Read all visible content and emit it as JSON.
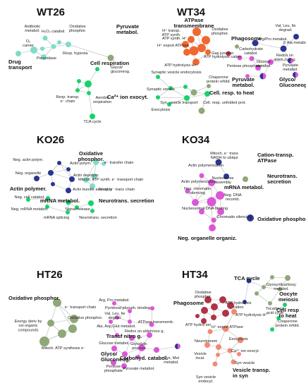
{
  "colors": {
    "cyan": "#7fdcc8",
    "cyan_dark": "#3ec0a8",
    "green": "#15d36a",
    "olive": "#8fa877",
    "navy": "#2b3590",
    "magenta": "#dd55d8",
    "orange": "#f0682f",
    "red_dark": "#c23a4e",
    "dark_red": "#b13248",
    "salmon": "#f08a72",
    "edge": "#b5b5b5"
  },
  "panels": [
    {
      "id": "WT26",
      "title": "WT26"
    },
    {
      "id": "WT34",
      "title": "WT34"
    },
    {
      "id": "KO26",
      "title": "KO26"
    },
    {
      "id": "KO34",
      "title": "KO34"
    },
    {
      "id": "HT26",
      "title": "HT26"
    },
    {
      "id": "HT34",
      "title": "HT34"
    }
  ],
  "labels": [
    {
      "id": "antibiotic",
      "text": "Antibiotic\nmetabol.",
      "bold": false
    },
    {
      "id": "h2o2",
      "text": "H₂O₂ catabol.",
      "bold": false
    },
    {
      "id": "oxphos_wt26",
      "text": "Oxidative\nphosphor.",
      "bold": false
    },
    {
      "id": "o2carrier",
      "text": "O₂\ncarrier",
      "bold": false
    },
    {
      "id": "peroxidase",
      "text": "Peroxidase",
      "bold": false
    },
    {
      "id": "resp_hypoxia",
      "text": "Resp. hypoxia",
      "bold": false
    },
    {
      "id": "drug_transport",
      "text": "Drug\ntransport",
      "bold": true
    },
    {
      "id": "pyruvate_wt26",
      "text": "Pyruvate\nmetabol.",
      "bold": true
    },
    {
      "id": "glycol_wt26",
      "text": "Glycol/\ngluconeog.",
      "bold": false
    },
    {
      "id": "cellresp_wt26",
      "text": "Cell respiration",
      "bold": true
    },
    {
      "id": "resptransp",
      "text": "Resp. transp.\ne⁻ chain",
      "bold": false
    },
    {
      "id": "aerobic",
      "text": "Aerobic\nrespiration",
      "bold": false
    },
    {
      "id": "tca_wt26",
      "text": "TCA cycle",
      "bold": false
    },
    {
      "id": "atpase_tm",
      "text": "ATPase\ntransmembrane",
      "bold": true
    },
    {
      "id": "htransp",
      "text": "H⁺ transp.\nATP synth.",
      "bold": false
    },
    {
      "id": "oxphos_wt34",
      "text": "Oxidative\nphosphor.",
      "bold": false
    },
    {
      "id": "atpsynthh",
      "text": "ATP synth. H⁺",
      "bold": false
    },
    {
      "id": "hexport",
      "text": "H⁺ export ATPase",
      "bold": false
    },
    {
      "id": "atphydro_cat",
      "text": "ATP hydrolysis cation",
      "bold": false
    },
    {
      "id": "atphydro_h",
      "text": "ATP hydrolysis H⁺",
      "bold": false
    },
    {
      "id": "phagosome_wt34",
      "text": "Phagosome",
      "bold": true
    },
    {
      "id": "gapjunction",
      "text": "Gap junction",
      "bold": false
    },
    {
      "id": "argpro_wt34",
      "text": "Arg/Pro metabol.",
      "bold": false
    },
    {
      "id": "valleu",
      "text": "Val, Leu, Ile\ndegrad.",
      "bold": false
    },
    {
      "id": "balametabol",
      "text": "β Ala metabol.",
      "bold": false
    },
    {
      "id": "carbometab",
      "text": "Carbohydrate\ncatabol.",
      "bold": false
    },
    {
      "id": "pentose_wt34",
      "text": "Pentose phosphate",
      "bold": false
    },
    {
      "id": "redox",
      "text": "Redox on\naldeh./oxo g.",
      "bold": false
    },
    {
      "id": "glucose_wt34",
      "text": "Glucose\nmetabol.",
      "bold": false
    },
    {
      "id": "pyruvate_wt34_small",
      "text": "Pyruvate\nmetabol.",
      "bold": false
    },
    {
      "id": "pyruvate_wt34",
      "text": "Pyruvate\nmetabol.",
      "bold": true
    },
    {
      "id": "glyco_wt34",
      "text": "Glyco/\nGluconeog.",
      "bold": true
    },
    {
      "id": "synvesexo",
      "text": "Synaptic vesicle endocytosis",
      "bold": false
    },
    {
      "id": "chaperone_wt34",
      "text": "Chaperone\nprotein refold.",
      "bold": false
    },
    {
      "id": "synvesicle",
      "text": "Synaptic vesicle",
      "bold": false
    },
    {
      "id": "ca2ion",
      "text": "Ca²⁺ ion exocyt.",
      "bold": true
    },
    {
      "id": "synvestrans",
      "text": "Syn. vesicle transport",
      "bold": false
    },
    {
      "id": "cellresp_heat",
      "text": "Cell. resp. to heat",
      "bold": true
    },
    {
      "id": "unfolded",
      "text": "Cell. resp. unfolded prot.",
      "bold": false
    },
    {
      "id": "exocytosis_wt34",
      "text": "Exocytosis",
      "bold": false
    },
    {
      "id": "negactin",
      "text": "Neg. actin polym.",
      "bold": false
    },
    {
      "id": "actinpolym",
      "text": "Actin polym.",
      "bold": false
    },
    {
      "id": "oxphos_ko26",
      "text": "Oxidative\nphosphor.",
      "bold": true
    },
    {
      "id": "etransfer",
      "text": "e⁻ transfer chain",
      "bold": false
    },
    {
      "id": "negorganelle_ko26",
      "text": "Neg. organelle",
      "bold": false
    },
    {
      "id": "actindepolym",
      "text": "Actin depolym.",
      "bold": false
    },
    {
      "id": "mitoch_ko26",
      "text": "Mitoch. ATP synth. e⁻ transport chain",
      "bold": false
    },
    {
      "id": "actinbundle",
      "text": "Actin bundle assembly",
      "bold": false
    },
    {
      "id": "resptrans_ko26",
      "text": "Resp. e⁻ trans chain",
      "bold": false
    },
    {
      "id": "actinpolymer_b",
      "text": "Actin polymer.",
      "bold": true
    },
    {
      "id": "negcellcatabol",
      "text": "Neg. cell catabol.",
      "bold": false
    },
    {
      "id": "mrna_ko26",
      "text": "mRNA metabol.",
      "bold": true
    },
    {
      "id": "neurotrans_ko26",
      "text": "Neurotrans. secretion",
      "bold": true
    },
    {
      "id": "negmrna",
      "text": "Neg. mRNA metabol.",
      "bold": false
    },
    {
      "id": "signalrelease",
      "text": "Signal release",
      "bold": false
    },
    {
      "id": "mrnasplicing",
      "text": "mRNA splicing",
      "bold": false
    },
    {
      "id": "neurotrans_small",
      "text": "Neurotrans. secretion",
      "bold": false
    },
    {
      "id": "mitoch_ko34",
      "text": "Mitoch. e⁻ trans\nNADH to ubiqui",
      "bold": false
    },
    {
      "id": "cationtransp",
      "text": "Cation-transp.\nATPase",
      "bold": true
    },
    {
      "id": "actinpolz_ko34",
      "text": "Actin polymerization",
      "bold": false
    },
    {
      "id": "neurotrans_ko34",
      "text": "Neurotrans.\nsecretion",
      "bold": true
    },
    {
      "id": "nucleosome",
      "text": "Nucleosome\nassembly",
      "bold": false
    },
    {
      "id": "actinpolz2",
      "text": "Actin polymerization",
      "bold": false
    },
    {
      "id": "negchromatin",
      "text": "Neg. chromatin\nsilencing",
      "bold": false
    },
    {
      "id": "negdna",
      "text": "Neg. DNA\nrecomb.",
      "bold": false
    },
    {
      "id": "mrna_ko34",
      "text": "mRNA metabol.",
      "bold": true
    },
    {
      "id": "nucleosomal",
      "text": "Nucleosomal DNA binding",
      "bold": false
    },
    {
      "id": "oxphospho_ko34",
      "text": "Oxidative phospho",
      "bold": true
    },
    {
      "id": "chromatinsil",
      "text": "Chromatin silencing",
      "bold": false
    },
    {
      "id": "negorgan_ko34",
      "text": "Neg. organelle organiz.",
      "bold": true
    },
    {
      "id": "oxphos_ht26",
      "text": "Oxidative phosphor.",
      "bold": true
    },
    {
      "id": "etransport_ht26",
      "text": "e⁻ transport chain",
      "bold": false
    },
    {
      "id": "oxphos_ht26_small",
      "text": "Oxidative phosphor.",
      "bold": false
    },
    {
      "id": "energy_ht26",
      "text": "Energy deriv by\noxi organic\ncompounds",
      "bold": false
    },
    {
      "id": "mitoch_ht26",
      "text": "Mitoch. ATP synthesis e⁻",
      "bold": false
    },
    {
      "id": "argpro_ht34",
      "text": "Arg, Pro metabol.",
      "bold": false
    },
    {
      "id": "pyridoxal",
      "text": "Pyridoxal phosph. binding",
      "bold": false
    },
    {
      "id": "valleu_ht34",
      "text": "Val, Leu, Ile\ndegrad.",
      "bold": false
    },
    {
      "id": "atpasetm_ht34",
      "text": "ATPase transmemb.",
      "bold": false
    },
    {
      "id": "alaasp",
      "text": "Ala, Asp,Glut metabol.",
      "bold": false
    },
    {
      "id": "redox_ht34",
      "text": "Redox on aldeh/oxo g.",
      "bold": false
    },
    {
      "id": "transfnitro",
      "text": "Transf nitro g.",
      "bold": true
    },
    {
      "id": "glycolytic",
      "text": "Glycolytic\nprocess",
      "bold": false
    },
    {
      "id": "glucose_ht34",
      "text": "Glucose metabol.",
      "bold": false
    },
    {
      "id": "glyco_ht34",
      "text": "Glyco/\nGluconeog.",
      "bold": true
    },
    {
      "id": "carbcat_ht34",
      "text": "Carbohyd. catabol.",
      "bold": true
    },
    {
      "id": "cysmet",
      "text": "Cys, Met\nmetabol.",
      "bold": false
    },
    {
      "id": "pentose_ht34",
      "text": "Pentose\nphosphate",
      "bold": false
    },
    {
      "id": "pyruvate_ht34",
      "text": "Pyruvate metabol.",
      "bold": false
    },
    {
      "id": "phagosome_ht34",
      "text": "Phagosome",
      "bold": true
    },
    {
      "id": "oxphos_ht34",
      "text": "Oxidative\nphosphor.",
      "bold": false
    },
    {
      "id": "atphydro_ht34",
      "text": "ATP hydrolysis\ncation",
      "bold": false
    },
    {
      "id": "atphydroh_ht34",
      "text": "ATP hydrolysis H⁺",
      "bold": false
    },
    {
      "id": "atphydrol_ht34",
      "text": "ATP hydrol ion",
      "bold": false
    },
    {
      "id": "hexport_ht34",
      "text": "H⁺ export ATPase",
      "bold": false
    },
    {
      "id": "tca_ht34",
      "text": "TCA cycle",
      "bold": true
    },
    {
      "id": "glyoxy",
      "text": "Glyoxy/dicarboxy.\nmetabol.",
      "bold": false
    },
    {
      "id": "tricarboxy",
      "text": "Tricarboxy.\nacid cycle",
      "bold": false
    },
    {
      "id": "oocyte",
      "text": "Oocyte\nmeiosis",
      "bold": true
    },
    {
      "id": "cellresp_ht34",
      "text": "Cell resp\nto heat",
      "bold": true
    },
    {
      "id": "exocytosis_ht34",
      "text": "Exocytosis",
      "bold": false
    },
    {
      "id": "neuronsm",
      "text": "Neurotransm",
      "bold": false
    },
    {
      "id": "ca2_ht34",
      "text": "Ca²⁺ ion exocyt.",
      "bold": false
    },
    {
      "id": "chaperone_ht34",
      "text": "Chaperone\nprotein refold.",
      "bold": false
    },
    {
      "id": "vesiclelocal",
      "text": "Vesicle\nlocal.",
      "bold": false
    },
    {
      "id": "synvesicle_ht34",
      "text": "Syn vesicle",
      "bold": false
    },
    {
      "id": "vesicletransp",
      "text": "Vesicle transp.\nin syn",
      "bold": true
    },
    {
      "id": "synvesendo",
      "text": "Syn vesicle\nendocyt.",
      "bold": false
    }
  ]
}
